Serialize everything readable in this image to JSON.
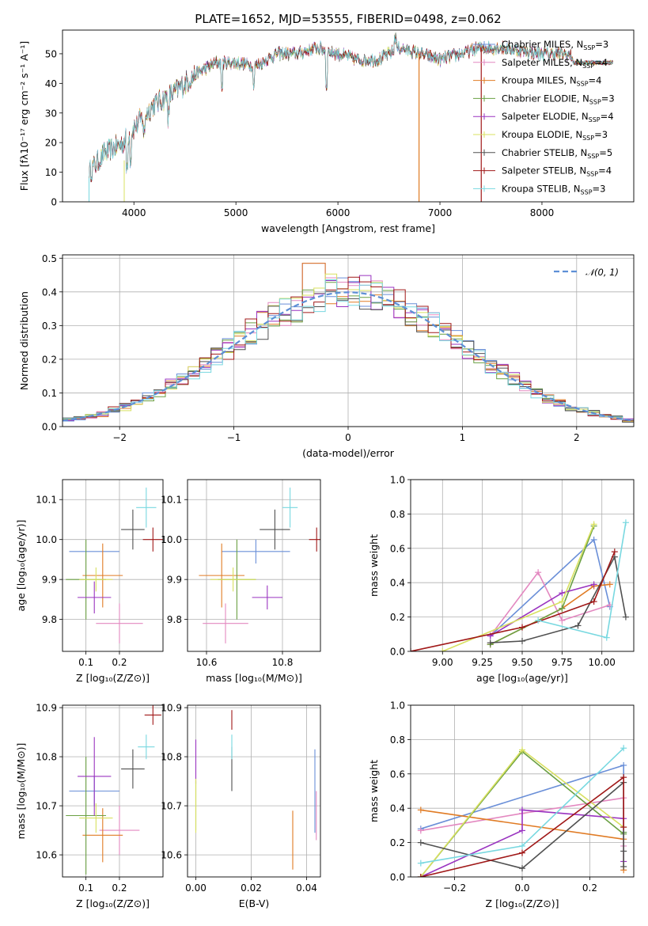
{
  "colors": {
    "Chabrier MILES": "#6a8fd8",
    "Salpeter MILES": "#e388c0",
    "Kroupa MILES": "#e07b24",
    "Chabrier ELODIE": "#6aa043",
    "Salpeter ELODIE": "#9a34c0",
    "Kroupa ELODIE": "#d8e060",
    "Chabrier STELIB": "#505050",
    "Salpeter STELIB": "#a01818",
    "Kroupa STELIB": "#78d8e0",
    "normal": "#5e8fd6"
  },
  "chart_data": [
    {
      "id": "spectrum",
      "type": "line",
      "title": "PLATE=1652, MJD=53555, FIBERID=0498, z=0.062",
      "xlabel": "wavelength [Angstrom, rest frame]",
      "ylabel": "Flux [fλ10⁻¹⁷ erg cm⁻² s⁻¹ A⁻¹]",
      "xlim": [
        3300,
        8900
      ],
      "ylim": [
        0,
        58
      ],
      "xticks": [
        4000,
        5000,
        6000,
        7000,
        8000
      ],
      "yticks": [
        0,
        10,
        20,
        30,
        40,
        50
      ],
      "legend_position": "top-right",
      "series": [
        {
          "name": "Chabrier MILES, N",
          "sub": "SSP",
          "suffix": "=3"
        },
        {
          "name": "Salpeter MILES, N",
          "sub": "SSP",
          "suffix": "=4"
        },
        {
          "name": "Kroupa MILES, N",
          "sub": "SSP",
          "suffix": "=4"
        },
        {
          "name": "Chabrier ELODIE, N",
          "sub": "SSP",
          "suffix": "=3"
        },
        {
          "name": "Salpeter ELODIE, N",
          "sub": "SSP",
          "suffix": "=4"
        },
        {
          "name": "Kroupa ELODIE, N",
          "sub": "SSP",
          "suffix": "=3"
        },
        {
          "name": "Chabrier STELIB, N",
          "sub": "SSP",
          "suffix": "=5"
        },
        {
          "name": "Salpeter STELIB, N",
          "sub": "SSP",
          "suffix": "=4"
        },
        {
          "name": "Kroupa STELIB, N",
          "sub": "SSP",
          "suffix": "=3"
        }
      ],
      "continuum": {
        "x": [
          3560,
          3700,
          3900,
          4000,
          4200,
          4400,
          4600,
          4800,
          5000,
          5200,
          5400,
          5600,
          5800,
          6000,
          6200,
          6400,
          6600,
          6800,
          7000,
          7200,
          7400,
          7600,
          7800,
          8000,
          8200,
          8400,
          8600,
          8700
        ],
        "y": [
          10,
          16,
          20,
          25,
          33,
          37,
          43,
          47,
          47,
          46,
          50,
          50,
          52,
          50,
          48,
          48,
          52,
          50,
          48,
          50,
          52,
          52,
          51,
          50,
          50,
          48,
          48,
          48
        ]
      }
    },
    {
      "id": "residuals",
      "type": "line",
      "xlabel": "(data-model)/error",
      "ylabel": "Normed distribution",
      "xlim": [
        -2.5,
        2.5
      ],
      "ylim": [
        0,
        0.51
      ],
      "xticks": [
        -2,
        -1,
        0,
        1,
        2
      ],
      "yticks": [
        0.0,
        0.1,
        0.2,
        0.3,
        0.4,
        0.5
      ],
      "legend": "𝒩(0, 1)",
      "legend_position": "top-right",
      "grid": true,
      "bin_width": 0.1
    },
    {
      "id": "z-age",
      "type": "scatter",
      "xlabel": "Z [log₁₀(Z/Z⊙)]",
      "ylabel": "age  [log₁₀(age/yr)]",
      "xlim": [
        0.03,
        0.33
      ],
      "ylim": [
        9.72,
        10.15
      ],
      "xticks": [
        0.1,
        0.2
      ],
      "yticks": [
        9.8,
        9.9,
        10.0,
        10.1
      ],
      "grid": true,
      "points": [
        {
          "s": "Chabrier MILES",
          "x": 0.125,
          "y": 9.97,
          "dx": 0.075,
          "dy": 0.0
        },
        {
          "s": "Salpeter MILES",
          "x": 0.2,
          "y": 9.79,
          "dx": 0.07,
          "dy": 0.05
        },
        {
          "s": "Kroupa MILES",
          "x": 0.15,
          "y": 9.91,
          "dx": 0.06,
          "dy": 0.08
        },
        {
          "s": "Chabrier ELODIE",
          "x": 0.1,
          "y": 9.9,
          "dx": 0.06,
          "dy": 0.1
        },
        {
          "s": "Salpeter ELODIE",
          "x": 0.125,
          "y": 9.855,
          "dx": 0.05,
          "dy": 0.04
        },
        {
          "s": "Kroupa ELODIE",
          "x": 0.13,
          "y": 9.9,
          "dx": 0.05,
          "dy": 0.03
        },
        {
          "s": "Chabrier STELIB",
          "x": 0.24,
          "y": 10.025,
          "dx": 0.035,
          "dy": 0.05
        },
        {
          "s": "Salpeter STELIB",
          "x": 0.3,
          "y": 10.0,
          "dx": 0.03,
          "dy": 0.03
        },
        {
          "s": "Kroupa STELIB",
          "x": 0.28,
          "y": 10.08,
          "dx": 0.03,
          "dy": 0.05
        }
      ]
    },
    {
      "id": "mass-age",
      "type": "scatter",
      "xlabel": "mass [log₁₀(M/M⊙)]",
      "xlim": [
        10.55,
        10.9
      ],
      "ylim": [
        9.72,
        10.15
      ],
      "xticks": [
        10.6,
        10.8
      ],
      "yticks": [
        9.8,
        9.9,
        10.0,
        10.1
      ],
      "grid": true,
      "points": [
        {
          "s": "Chabrier MILES",
          "x": 10.73,
          "y": 9.97,
          "dx": 0.09,
          "dy": 0.03
        },
        {
          "s": "Salpeter MILES",
          "x": 10.65,
          "y": 9.79,
          "dx": 0.06,
          "dy": 0.05
        },
        {
          "s": "Kroupa MILES",
          "x": 10.64,
          "y": 9.91,
          "dx": 0.06,
          "dy": 0.08
        },
        {
          "s": "Chabrier ELODIE",
          "x": 10.68,
          "y": 9.9,
          "dx": 0.05,
          "dy": 0.1
        },
        {
          "s": "Salpeter ELODIE",
          "x": 10.76,
          "y": 9.855,
          "dx": 0.04,
          "dy": 0.03
        },
        {
          "s": "Kroupa ELODIE",
          "x": 10.67,
          "y": 9.9,
          "dx": 0.06,
          "dy": 0.03
        },
        {
          "s": "Chabrier STELIB",
          "x": 10.78,
          "y": 10.025,
          "dx": 0.04,
          "dy": 0.05
        },
        {
          "s": "Salpeter STELIB",
          "x": 10.89,
          "y": 10.0,
          "dx": 0.02,
          "dy": 0.03
        },
        {
          "s": "Kroupa STELIB",
          "x": 10.82,
          "y": 10.08,
          "dx": 0.02,
          "dy": 0.05
        }
      ]
    },
    {
      "id": "age-weight",
      "type": "line",
      "xlabel": "age  [log₁₀(age/yr)]",
      "ylabel": "mass weight",
      "xlim": [
        8.8,
        10.2
      ],
      "ylim": [
        0.0,
        1.0
      ],
      "xticks": [
        9.0,
        9.25,
        9.5,
        9.75,
        10.0
      ],
      "yticks": [
        0.0,
        0.2,
        0.4,
        0.6,
        0.8,
        1.0
      ],
      "grid": true,
      "series": [
        {
          "s": "Chabrier MILES",
          "x": [
            9.3,
            9.95,
            10.05
          ],
          "y": [
            0.09,
            0.65,
            0.26
          ]
        },
        {
          "s": "Salpeter MILES",
          "x": [
            9.3,
            9.6,
            9.75,
            10.05
          ],
          "y": [
            0.09,
            0.46,
            0.18,
            0.27
          ]
        },
        {
          "s": "Kroupa MILES",
          "x": [
            9.3,
            9.75,
            9.95,
            10.05
          ],
          "y": [
            0.04,
            0.25,
            0.38,
            0.39
          ]
        },
        {
          "s": "Chabrier ELODIE",
          "x": [
            9.3,
            9.75,
            9.95
          ],
          "y": [
            0.04,
            0.25,
            0.73
          ]
        },
        {
          "s": "Salpeter ELODIE",
          "x": [
            9.3,
            9.75,
            9.95
          ],
          "y": [
            0.09,
            0.34,
            0.39
          ]
        },
        {
          "s": "Kroupa ELODIE",
          "x": [
            9.0,
            9.75,
            9.95
          ],
          "y": [
            0.0,
            0.29,
            0.74
          ]
        },
        {
          "s": "Chabrier STELIB",
          "x": [
            9.3,
            9.5,
            9.85,
            10.08,
            10.15
          ],
          "y": [
            0.05,
            0.06,
            0.15,
            0.55,
            0.2
          ]
        },
        {
          "s": "Salpeter STELIB",
          "x": [
            8.8,
            9.5,
            9.95,
            10.08
          ],
          "y": [
            0.0,
            0.14,
            0.29,
            0.58
          ]
        },
        {
          "s": "Kroupa STELIB",
          "x": [
            9.6,
            10.03,
            10.15
          ],
          "y": [
            0.18,
            0.08,
            0.75
          ]
        }
      ]
    },
    {
      "id": "z-mass",
      "type": "scatter",
      "xlabel": "Z [log₁₀(Z/Z⊙)]",
      "ylabel": "mass [log₁₀(M/M⊙)]",
      "xlim": [
        0.03,
        0.33
      ],
      "ylim": [
        10.555,
        10.905
      ],
      "xticks": [
        0.1,
        0.2
      ],
      "yticks": [
        10.6,
        10.7,
        10.8,
        10.9
      ],
      "grid": true,
      "points": [
        {
          "s": "Chabrier MILES",
          "x": 0.125,
          "y": 10.73,
          "dx": 0.075,
          "dy": 0.03
        },
        {
          "s": "Salpeter MILES",
          "x": 0.2,
          "y": 10.65,
          "dx": 0.06,
          "dy": 0.05
        },
        {
          "s": "Kroupa MILES",
          "x": 0.15,
          "y": 10.64,
          "dx": 0.06,
          "dy": 0.055
        },
        {
          "s": "Chabrier ELODIE",
          "x": 0.1,
          "y": 10.68,
          "dx": 0.06,
          "dy": 0.12
        },
        {
          "s": "Salpeter ELODIE",
          "x": 0.125,
          "y": 10.76,
          "dx": 0.05,
          "dy": 0.08
        },
        {
          "s": "Kroupa ELODIE",
          "x": 0.13,
          "y": 10.675,
          "dx": 0.05,
          "dy": 0.03
        },
        {
          "s": "Chabrier STELIB",
          "x": 0.24,
          "y": 10.775,
          "dx": 0.035,
          "dy": 0.04
        },
        {
          "s": "Salpeter STELIB",
          "x": 0.3,
          "y": 10.885,
          "dx": 0.025,
          "dy": 0.02
        },
        {
          "s": "Kroupa STELIB",
          "x": 0.28,
          "y": 10.82,
          "dx": 0.025,
          "dy": 0.025
        }
      ]
    },
    {
      "id": "ebv-mass",
      "type": "scatter",
      "xlabel": "E(B-V)",
      "xlim": [
        -0.003,
        0.045
      ],
      "ylim": [
        10.555,
        10.905
      ],
      "xticks": [
        0.0,
        0.02,
        0.04
      ],
      "yticks": [
        10.6,
        10.7,
        10.8,
        10.9
      ],
      "grid": true,
      "points": [
        {
          "s": "Chabrier MILES",
          "x": 0.043,
          "y": 10.73,
          "dx": 0.0,
          "dy": 0.085
        },
        {
          "s": "Salpeter MILES",
          "x": 0.0435,
          "y": 10.68,
          "dx": 0.0,
          "dy": 0.05
        },
        {
          "s": "Kroupa MILES",
          "x": 0.035,
          "y": 10.63,
          "dx": 0.0,
          "dy": 0.06
        },
        {
          "s": "Chabrier ELODIE",
          "x": 0.0,
          "y": 10.7,
          "dx": 0.0,
          "dy": 0.05
        },
        {
          "s": "Salpeter ELODIE",
          "x": 0.0,
          "y": 10.79,
          "dx": 0.0,
          "dy": 0.045
        },
        {
          "s": "Kroupa ELODIE",
          "x": 0.0,
          "y": 10.7,
          "dx": 0.0,
          "dy": 0.055
        },
        {
          "s": "Chabrier STELIB",
          "x": 0.013,
          "y": 10.775,
          "dx": 0.0,
          "dy": 0.045
        },
        {
          "s": "Salpeter STELIB",
          "x": 0.013,
          "y": 10.875,
          "dx": 0.0,
          "dy": 0.02
        },
        {
          "s": "Kroupa STELIB",
          "x": 0.013,
          "y": 10.82,
          "dx": 0.0,
          "dy": 0.025
        }
      ]
    },
    {
      "id": "z-weight",
      "type": "line",
      "xlabel": "Z [log₁₀(Z/Z⊙)]",
      "ylabel": "mass weight",
      "xlim": [
        -0.33,
        0.33
      ],
      "ylim": [
        0.0,
        1.0
      ],
      "xticks": [
        -0.2,
        0.0,
        0.2
      ],
      "yticks": [
        0.0,
        0.2,
        0.4,
        0.6,
        0.8,
        1.0
      ],
      "grid": true,
      "series": [
        {
          "s": "Chabrier MILES",
          "x": [
            -0.3,
            0.3,
            0.3
          ],
          "y": [
            0.28,
            0.65,
            0.26
          ]
        },
        {
          "s": "Salpeter MILES",
          "x": [
            -0.3,
            0.0,
            0.3,
            0.3
          ],
          "y": [
            0.27,
            0.37,
            0.46,
            0.18
          ]
        },
        {
          "s": "Kroupa MILES",
          "x": [
            -0.3,
            0.3,
            0.3
          ],
          "y": [
            0.39,
            0.22,
            0.04
          ]
        },
        {
          "s": "Chabrier ELODIE",
          "x": [
            -0.3,
            0.0,
            0.3,
            0.3
          ],
          "y": [
            0.0,
            0.73,
            0.25,
            0.26
          ]
        },
        {
          "s": "Salpeter ELODIE",
          "x": [
            -0.3,
            0.0,
            0.0,
            0.3,
            0.3
          ],
          "y": [
            0.0,
            0.27,
            0.39,
            0.34,
            0.09
          ]
        },
        {
          "s": "Kroupa ELODIE",
          "x": [
            -0.3,
            0.0,
            0.3
          ],
          "y": [
            0.0,
            0.74,
            0.29
          ]
        },
        {
          "s": "Chabrier STELIB",
          "x": [
            -0.3,
            0.0,
            0.3,
            0.3,
            0.3
          ],
          "y": [
            0.2,
            0.05,
            0.55,
            0.15,
            0.06
          ]
        },
        {
          "s": "Salpeter STELIB",
          "x": [
            -0.3,
            0.0,
            0.3,
            0.3
          ],
          "y": [
            0.0,
            0.14,
            0.58,
            0.29
          ]
        },
        {
          "s": "Kroupa STELIB",
          "x": [
            -0.3,
            0.0,
            0.3
          ],
          "y": [
            0.08,
            0.18,
            0.75
          ]
        }
      ]
    }
  ]
}
